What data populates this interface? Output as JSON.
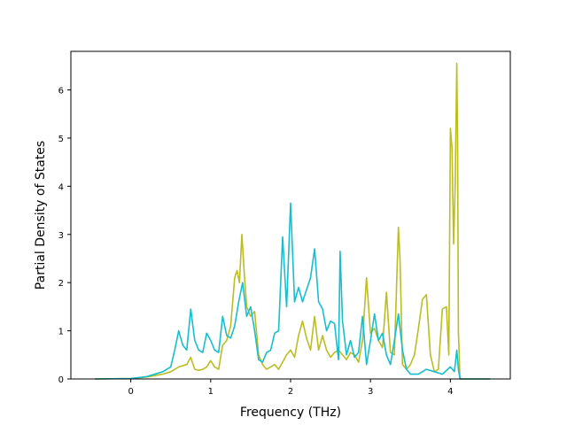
{
  "chart_data": {
    "type": "line",
    "title": "",
    "xlabel": "Frequency (THz)",
    "ylabel": "Partial Density of States",
    "xlim": [
      -0.75,
      4.75
    ],
    "ylim": [
      0,
      6.8
    ],
    "xticks": [
      0,
      1,
      2,
      3,
      4
    ],
    "yticks": [
      0,
      1,
      2,
      3,
      4,
      5,
      6
    ],
    "grid": false,
    "legend": "none",
    "series": [
      {
        "color": "#bcbd22",
        "x": [
          -0.45,
          0.0,
          0.2,
          0.4,
          0.5,
          0.6,
          0.7,
          0.75,
          0.8,
          0.85,
          0.9,
          0.95,
          1.0,
          1.05,
          1.1,
          1.15,
          1.2,
          1.25,
          1.3,
          1.33,
          1.36,
          1.39,
          1.42,
          1.45,
          1.5,
          1.55,
          1.6,
          1.65,
          1.7,
          1.75,
          1.8,
          1.85,
          1.9,
          1.95,
          2.0,
          2.05,
          2.1,
          2.15,
          2.2,
          2.25,
          2.3,
          2.35,
          2.4,
          2.45,
          2.5,
          2.55,
          2.6,
          2.65,
          2.7,
          2.75,
          2.8,
          2.85,
          2.9,
          2.95,
          3.0,
          3.05,
          3.1,
          3.15,
          3.2,
          3.25,
          3.3,
          3.35,
          3.37,
          3.4,
          3.45,
          3.5,
          3.55,
          3.6,
          3.65,
          3.7,
          3.75,
          3.8,
          3.85,
          3.9,
          3.95,
          3.98,
          4.0,
          4.02,
          4.04,
          4.06,
          4.08,
          4.09,
          4.1,
          4.12,
          4.2,
          4.5
        ],
        "y": [
          0,
          0.01,
          0.04,
          0.1,
          0.15,
          0.25,
          0.3,
          0.45,
          0.2,
          0.18,
          0.2,
          0.25,
          0.38,
          0.25,
          0.2,
          0.7,
          0.8,
          1.1,
          2.1,
          2.25,
          2.0,
          3.0,
          2.2,
          1.5,
          1.3,
          1.4,
          0.5,
          0.3,
          0.2,
          0.25,
          0.3,
          0.2,
          0.35,
          0.5,
          0.6,
          0.45,
          0.9,
          1.2,
          0.85,
          0.6,
          1.3,
          0.6,
          0.9,
          0.6,
          0.45,
          0.55,
          0.6,
          0.5,
          0.4,
          0.55,
          0.5,
          0.35,
          0.8,
          2.1,
          0.95,
          1.05,
          0.8,
          0.65,
          1.8,
          0.55,
          0.5,
          3.15,
          2.5,
          0.3,
          0.2,
          0.3,
          0.5,
          1.05,
          1.65,
          1.75,
          0.5,
          0.15,
          0.2,
          1.45,
          1.5,
          0.5,
          5.2,
          4.8,
          2.8,
          4.0,
          6.55,
          5.0,
          1.0,
          0,
          0,
          0
        ]
      },
      {
        "color": "#17becf",
        "x": [
          -0.45,
          0.0,
          0.2,
          0.4,
          0.5,
          0.55,
          0.6,
          0.65,
          0.7,
          0.75,
          0.8,
          0.85,
          0.9,
          0.95,
          1.0,
          1.05,
          1.1,
          1.15,
          1.2,
          1.25,
          1.3,
          1.35,
          1.4,
          1.45,
          1.5,
          1.55,
          1.6,
          1.65,
          1.7,
          1.75,
          1.8,
          1.85,
          1.9,
          1.95,
          2.0,
          2.05,
          2.1,
          2.15,
          2.2,
          2.25,
          2.3,
          2.35,
          2.4,
          2.45,
          2.5,
          2.55,
          2.6,
          2.62,
          2.65,
          2.7,
          2.75,
          2.8,
          2.85,
          2.9,
          2.95,
          3.0,
          3.05,
          3.1,
          3.15,
          3.2,
          3.25,
          3.3,
          3.35,
          3.4,
          3.45,
          3.5,
          3.6,
          3.7,
          3.8,
          3.9,
          4.0,
          4.05,
          4.08,
          4.1,
          4.12,
          4.2,
          4.5
        ],
        "y": [
          0,
          0.01,
          0.05,
          0.15,
          0.25,
          0.6,
          1.0,
          0.7,
          0.6,
          1.45,
          0.8,
          0.6,
          0.55,
          0.95,
          0.8,
          0.6,
          0.55,
          1.3,
          0.9,
          0.85,
          1.1,
          1.6,
          2.0,
          1.3,
          1.5,
          1.0,
          0.4,
          0.35,
          0.55,
          0.6,
          0.95,
          1.0,
          2.95,
          1.5,
          3.65,
          1.6,
          1.9,
          1.6,
          1.85,
          2.1,
          2.7,
          1.6,
          1.45,
          1.0,
          1.2,
          1.15,
          0.4,
          2.65,
          1.2,
          0.5,
          0.8,
          0.45,
          0.55,
          1.3,
          0.3,
          0.8,
          1.35,
          0.8,
          0.95,
          0.5,
          0.3,
          0.8,
          1.35,
          0.6,
          0.2,
          0.1,
          0.1,
          0.2,
          0.15,
          0.1,
          0.25,
          0.15,
          0.6,
          0.2,
          0,
          0,
          0
        ]
      }
    ]
  }
}
